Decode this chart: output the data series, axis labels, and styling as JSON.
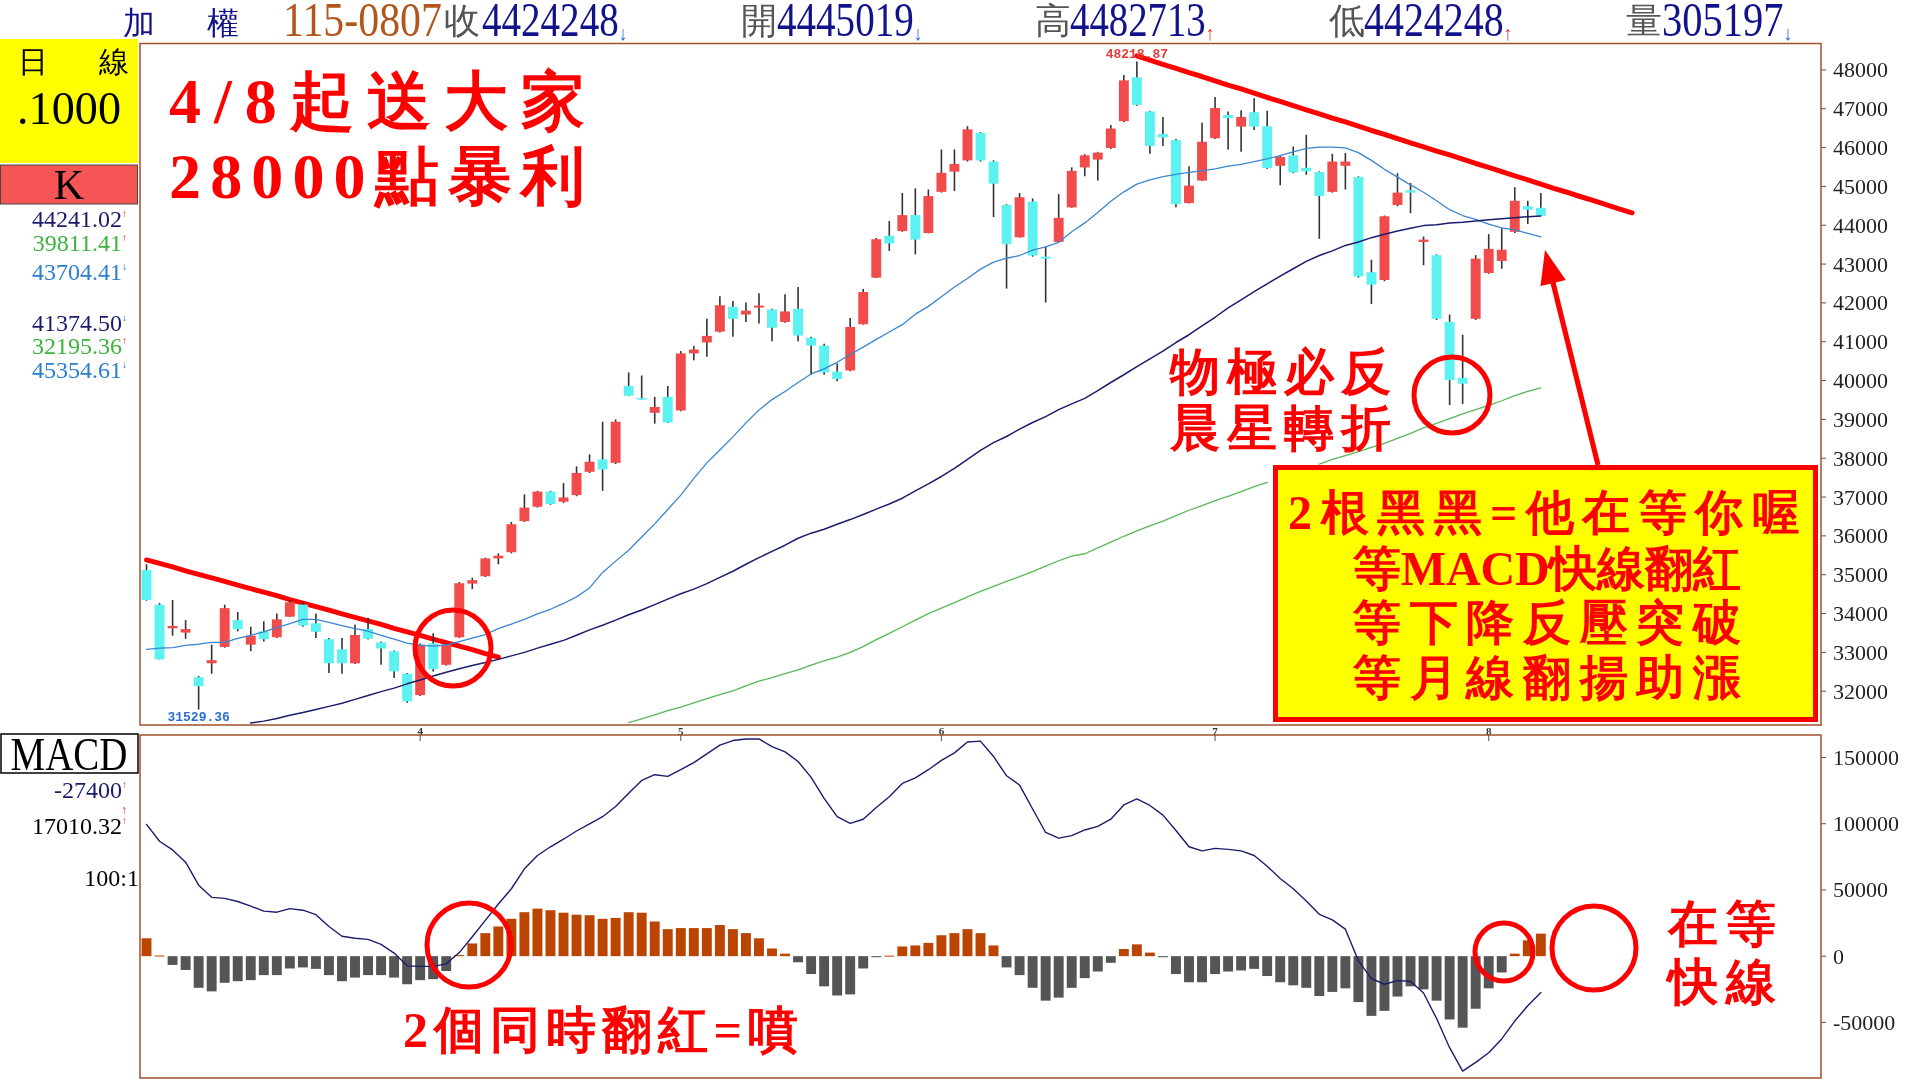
{
  "chart_data": [
    {
      "type": "candlestick",
      "categories": [
        null,
        null,
        null,
        null,
        null,
        null,
        null,
        null,
        null,
        null,
        null,
        null,
        null,
        null,
        null,
        null,
        null,
        null,
        null,
        null,
        null,
        "4",
        null,
        null,
        null,
        null,
        null,
        null,
        null,
        null,
        null,
        null,
        null,
        null,
        null,
        null,
        null,
        null,
        null,
        null,
        null,
        "5",
        null,
        null,
        null,
        null,
        null,
        null,
        null,
        null,
        null,
        null,
        null,
        null,
        null,
        null,
        null,
        null,
        null,
        null,
        null,
        "6",
        null,
        null,
        null,
        null,
        null,
        null,
        null,
        null,
        null,
        null,
        null,
        null,
        null,
        null,
        null,
        null,
        null,
        null,
        null,
        null,
        "7",
        null,
        null,
        null,
        null,
        null,
        null,
        null,
        null,
        null,
        null,
        null,
        null,
        null,
        null,
        null,
        null,
        null,
        null,
        null,
        null,
        "8",
        null,
        null,
        null,
        null,
        null,
        null,
        null,
        null,
        null,
        null,
        null,
        null,
        null,
        null,
        null,
        null,
        null,
        null,
        null,
        null,
        null,
        null,
        null,
        null,
        null
      ],
      "ohlc": [
        [
          35120,
          35270,
          34330,
          34350
        ],
        [
          34230,
          34270,
          32820,
          32820
        ],
        [
          33620,
          34350,
          33430,
          33680
        ],
        [
          33510,
          33830,
          33350,
          33600
        ],
        [
          32360,
          32390,
          31529.36,
          32130
        ],
        [
          32720,
          33200,
          32450,
          32800
        ],
        [
          33140,
          34230,
          33120,
          34140
        ],
        [
          33830,
          34040,
          33540,
          33600
        ],
        [
          33200,
          33660,
          33030,
          33430
        ],
        [
          33540,
          33800,
          33280,
          33340
        ],
        [
          33390,
          34000,
          33370,
          33850
        ],
        [
          33920,
          34350,
          33910,
          34290
        ],
        [
          34230,
          34290,
          33660,
          33690
        ],
        [
          33750,
          34000,
          33370,
          33530
        ],
        [
          33340,
          33370,
          32470,
          32720
        ],
        [
          33080,
          33370,
          32450,
          32720
        ],
        [
          32720,
          33720,
          32700,
          33450
        ],
        [
          33600,
          33890,
          33330,
          33350
        ],
        [
          33260,
          33280,
          32680,
          33100
        ],
        [
          33030,
          33050,
          32340,
          32510
        ],
        [
          32450,
          32470,
          31700,
          31740
        ],
        [
          31900,
          33230,
          31880,
          33200
        ],
        [
          33230,
          33490,
          32510,
          32570
        ],
        [
          32680,
          33230,
          32660,
          33200
        ],
        [
          33390,
          34810,
          33370,
          34780
        ],
        [
          34770,
          34920,
          34630,
          34860
        ],
        [
          34960,
          35440,
          34940,
          35420
        ],
        [
          35420,
          35550,
          35270,
          35490
        ],
        [
          35580,
          36360,
          35550,
          36300
        ],
        [
          36380,
          37070,
          36360,
          36730
        ],
        [
          36750,
          37160,
          36730,
          37140
        ],
        [
          37140,
          37160,
          36800,
          36820
        ],
        [
          36880,
          37360,
          36850,
          36990
        ],
        [
          37050,
          37790,
          37020,
          37620
        ],
        [
          37650,
          38100,
          37620,
          37910
        ],
        [
          37970,
          38940,
          37160,
          37710
        ],
        [
          37880,
          39000,
          37850,
          38940
        ],
        [
          39860,
          40210,
          39600,
          39610
        ],
        [
          39550,
          40130,
          39510,
          39520
        ],
        [
          39170,
          39580,
          38890,
          39320
        ],
        [
          39580,
          39860,
          38910,
          38920
        ],
        [
          39230,
          40760,
          39210,
          40700
        ],
        [
          40700,
          40890,
          40520,
          40800
        ],
        [
          40980,
          41590,
          40610,
          41150
        ],
        [
          41260,
          42170,
          41240,
          41940
        ],
        [
          41900,
          42050,
          41130,
          41590
        ],
        [
          41700,
          42010,
          41510,
          41800
        ],
        [
          41880,
          42250,
          41470,
          41930
        ],
        [
          41830,
          41850,
          41010,
          41360
        ],
        [
          41510,
          42220,
          41490,
          41780
        ],
        [
          41850,
          42410,
          41010,
          41160
        ],
        [
          41100,
          41130,
          40150,
          40900
        ],
        [
          40900,
          40950,
          40150,
          40210
        ],
        [
          40230,
          40440,
          39980,
          40040
        ],
        [
          40260,
          41610,
          40240,
          41380
        ],
        [
          41450,
          42360,
          41440,
          42280
        ],
        [
          42650,
          43670,
          42640,
          43640
        ],
        [
          43730,
          44110,
          43340,
          43530
        ],
        [
          43850,
          44830,
          43830,
          44260
        ],
        [
          44260,
          44950,
          43250,
          43630
        ],
        [
          43800,
          44920,
          43790,
          44750
        ],
        [
          44860,
          45950,
          44840,
          45350
        ],
        [
          45380,
          45950,
          44880,
          45580
        ],
        [
          45670,
          46550,
          45640,
          46470
        ],
        [
          46380,
          46400,
          45640,
          45670
        ],
        [
          45640,
          45670,
          44210,
          45070
        ],
        [
          44520,
          44540,
          42370,
          43510
        ],
        [
          43690,
          44830,
          43680,
          44720
        ],
        [
          44610,
          44690,
          43190,
          43220
        ],
        [
          43190,
          43450,
          42010,
          43140
        ],
        [
          43570,
          44800,
          43560,
          44190
        ],
        [
          44460,
          45490,
          44450,
          45400
        ],
        [
          45490,
          45830,
          45260,
          45800
        ],
        [
          45690,
          45890,
          45150,
          45870
        ],
        [
          45990,
          46580,
          45960,
          46490
        ],
        [
          46680,
          47870,
          46650,
          47730
        ],
        [
          47810,
          48218.87,
          47080,
          47100
        ],
        [
          46930,
          46950,
          45840,
          46040
        ],
        [
          46350,
          46790,
          46040,
          46260
        ],
        [
          46190,
          46220,
          44460,
          44540
        ],
        [
          44570,
          45520,
          44560,
          45020
        ],
        [
          45150,
          46640,
          45140,
          46150
        ],
        [
          46240,
          47300,
          46220,
          47020
        ],
        [
          46840,
          46930,
          45950,
          46760
        ],
        [
          46540,
          46960,
          45890,
          46790
        ],
        [
          46910,
          47270,
          46450,
          46540
        ],
        [
          46550,
          46950,
          45450,
          45470
        ],
        [
          45530,
          45800,
          45030,
          45760
        ],
        [
          45800,
          46030,
          45340,
          45360
        ],
        [
          45480,
          46330,
          45300,
          45390
        ],
        [
          45370,
          45390,
          43650,
          44750
        ],
        [
          44860,
          45840,
          44840,
          45640
        ],
        [
          45530,
          45860,
          44920,
          45640
        ],
        [
          45240,
          45260,
          42650,
          42680
        ],
        [
          42790,
          43110,
          41970,
          42470
        ],
        [
          42590,
          44250,
          42560,
          44230
        ],
        [
          44520,
          45340,
          44490,
          44840
        ],
        [
          44900,
          45090,
          44310,
          44840
        ],
        [
          43570,
          43710,
          42970,
          43630
        ],
        [
          43230,
          43250,
          41560,
          41590
        ],
        [
          41510,
          41700,
          39370,
          40010
        ],
        [
          40070,
          41180,
          39400,
          39920
        ],
        [
          41590,
          43230,
          41560,
          43140
        ],
        [
          42770,
          43770,
          42750,
          43390
        ],
        [
          43080,
          43920,
          42880,
          43370
        ],
        [
          43830,
          44980,
          43800,
          44630
        ],
        [
          44490,
          44630,
          44030,
          44400
        ],
        [
          44450.19,
          44827.13,
          44242.48,
          44242.48
        ],
        null,
        null,
        null,
        null,
        null,
        null,
        null,
        null,
        null,
        null,
        null,
        null,
        null,
        null,
        null,
        null,
        null,
        null,
        null,
        null,
        null
      ],
      "colors": [
        "#5cf2f2",
        "#5cf2f2",
        "#f24b4b",
        "#f24b4b",
        "#5cf2f2",
        "#f24b4b",
        "#f24b4b",
        "#5cf2f2",
        "#f24b4b",
        "#5cf2f2",
        "#f24b4b",
        "#f24b4b",
        "#5cf2f2",
        "#5cf2f2",
        "#5cf2f2",
        "#5cf2f2",
        "#f24b4b",
        "#5cf2f2",
        "#5cf2f2",
        "#5cf2f2",
        "#5cf2f2",
        "#f24b4b",
        "#5cf2f2",
        "#f24b4b",
        "#f24b4b",
        "#f24b4b",
        "#f24b4b",
        "#f24b4b",
        "#f24b4b",
        "#f24b4b",
        "#f24b4b",
        "#5cf2f2",
        "#f24b4b",
        "#f24b4b",
        "#f24b4b",
        "#5cf2f2",
        "#f24b4b",
        "#5cf2f2",
        "#5cf2f2",
        "#f24b4b",
        "#5cf2f2",
        "#f24b4b",
        "#f24b4b",
        "#f24b4b",
        "#f24b4b",
        "#5cf2f2",
        "#f24b4b",
        "#f24b4b",
        "#5cf2f2",
        "#f24b4b",
        "#5cf2f2",
        "#5cf2f2",
        "#5cf2f2",
        "#5cf2f2",
        "#f24b4b",
        "#f24b4b",
        "#f24b4b",
        "#5cf2f2",
        "#f24b4b",
        "#5cf2f2",
        "#f24b4b",
        "#f24b4b",
        "#f24b4b",
        "#f24b4b",
        "#5cf2f2",
        "#5cf2f2",
        "#5cf2f2",
        "#f24b4b",
        "#5cf2f2",
        "#5cf2f2",
        "#f24b4b",
        "#f24b4b",
        "#f24b4b",
        "#f24b4b",
        "#f24b4b",
        "#f24b4b",
        "#5cf2f2",
        "#5cf2f2",
        "#5cf2f2",
        "#5cf2f2",
        "#f24b4b",
        "#f24b4b",
        "#f24b4b",
        "#5cf2f2",
        "#f24b4b",
        "#5cf2f2",
        "#5cf2f2",
        "#f24b4b",
        "#5cf2f2",
        "#5cf2f2",
        "#5cf2f2",
        "#f24b4b",
        "#f24b4b",
        "#5cf2f2",
        "#5cf2f2",
        "#f24b4b",
        "#f24b4b",
        "#5cf2f2",
        "#f24b4b",
        "#5cf2f2",
        "#5cf2f2",
        "#5cf2f2",
        "#f24b4b",
        "#f24b4b",
        "#f24b4b",
        "#f24b4b",
        "#5cf2f2",
        "#5cf2f2",
        null,
        null,
        null,
        null,
        null,
        null,
        null,
        null,
        null,
        null,
        null,
        null,
        null,
        null,
        null,
        null,
        null,
        null,
        null,
        null,
        null
      ],
      "series": [
        {
          "type": "line",
          "color": "#3a86d0",
          "values": [
            33080,
            33110,
            33120,
            33180,
            33210,
            33260,
            33260,
            33360,
            33440,
            33530,
            33640,
            33740,
            33850,
            33850,
            33770,
            33690,
            33610,
            33550,
            33440,
            33340,
            33240,
            33180,
            33160,
            33190,
            33280,
            33370,
            33460,
            33610,
            33730,
            33850,
            33990,
            34110,
            34260,
            34430,
            34660,
            35060,
            35350,
            35630,
            35970,
            36310,
            36680,
            37050,
            37480,
            37880,
            38210,
            38550,
            38910,
            39240,
            39510,
            39720,
            39950,
            40170,
            40300,
            40470,
            40670,
            40860,
            41060,
            41250,
            41440,
            41710,
            41910,
            42160,
            42410,
            42630,
            42870,
            43050,
            43150,
            43220,
            43360,
            43440,
            43560,
            43830,
            44060,
            44330,
            44620,
            44860,
            45060,
            45170,
            45250,
            45310,
            45360,
            45400,
            45450,
            45520,
            45570,
            45640,
            45710,
            45790,
            45890,
            45980,
            46010,
            46010,
            45990,
            45870,
            45670,
            45440,
            45240,
            45040,
            44850,
            44630,
            44400,
            44250,
            44150,
            44030,
            43930,
            43880,
            43790,
            43700,
            null,
            null,
            null,
            null,
            null,
            null,
            null,
            null,
            null,
            null,
            null,
            null,
            null,
            null,
            null,
            null,
            null,
            null,
            null,
            null,
            null
          ]
        },
        {
          "type": "line",
          "color": "#1c1c6c",
          "values": [
            null,
            null,
            null,
            null,
            null,
            null,
            null,
            null,
            31180,
            31230,
            31300,
            31380,
            31450,
            31530,
            31610,
            31690,
            31790,
            31890,
            31990,
            32080,
            32190,
            32290,
            32390,
            32490,
            32580,
            32660,
            32740,
            32820,
            32910,
            33000,
            33110,
            33210,
            33310,
            33440,
            33580,
            33700,
            33830,
            33970,
            34090,
            34230,
            34370,
            34510,
            34630,
            34770,
            34930,
            35090,
            35270,
            35440,
            35600,
            35760,
            35940,
            36070,
            36170,
            36300,
            36420,
            36550,
            36690,
            36820,
            36970,
            37160,
            37340,
            37530,
            37740,
            37970,
            38200,
            38400,
            38560,
            38750,
            38920,
            39070,
            39250,
            39400,
            39540,
            39740,
            39950,
            40150,
            40360,
            40560,
            40760,
            40980,
            41180,
            41410,
            41630,
            41870,
            42080,
            42290,
            42490,
            42690,
            42880,
            43070,
            43220,
            43340,
            43480,
            43570,
            43680,
            43770,
            43850,
            43920,
            43990,
            44010,
            44060,
            44080,
            44110,
            44140,
            44170,
            44190,
            44220,
            44240,
            null,
            null,
            null,
            null,
            null,
            null,
            null,
            null,
            null,
            null,
            null,
            null,
            null,
            null,
            null,
            null,
            null,
            null,
            null,
            null,
            null
          ]
        },
        {
          "type": "line",
          "color": "#58b858",
          "values": [
            null,
            null,
            null,
            null,
            null,
            null,
            null,
            null,
            null,
            null,
            null,
            null,
            null,
            null,
            null,
            null,
            null,
            null,
            null,
            null,
            null,
            null,
            null,
            null,
            null,
            null,
            null,
            null,
            null,
            null,
            null,
            null,
            null,
            null,
            null,
            null,
            null,
            31190,
            31290,
            31390,
            31500,
            31590,
            31700,
            31810,
            31910,
            32010,
            32140,
            32260,
            32350,
            32450,
            32550,
            32670,
            32780,
            32880,
            33000,
            33150,
            33330,
            33490,
            33660,
            33830,
            34000,
            34140,
            34280,
            34430,
            34570,
            34700,
            34830,
            34950,
            35080,
            35220,
            35360,
            35480,
            35540,
            35690,
            35840,
            35990,
            36130,
            36260,
            36380,
            36520,
            36660,
            36780,
            36910,
            37020,
            37140,
            37270,
            37380,
            null,
            null,
            null,
            37850,
            37970,
            38070,
            38170,
            38280,
            38380,
            38510,
            38640,
            38780,
            38900,
            39020,
            39140,
            39250,
            39360,
            39480,
            39610,
            39720,
            39810,
            null,
            null,
            null,
            null,
            null,
            null,
            null,
            null,
            null,
            null,
            null,
            null,
            null,
            null,
            null,
            null,
            null,
            null,
            null,
            null,
            null
          ]
        },
        {
          "type": "line",
          "color": "#ff0000",
          "values": [
            35380,
            35290,
            35200,
            35100,
            35010,
            34920,
            34830,
            34730,
            34640,
            34550,
            34460,
            34360,
            34270,
            34180,
            34090,
            33990,
            33900,
            33810,
            33720,
            33620,
            33530,
            33440,
            33340,
            33250,
            33160,
            33070,
            32970,
            32880,
            null,
            null,
            null,
            null,
            null,
            null,
            null,
            null,
            null,
            null,
            null,
            null,
            null,
            null,
            null,
            null,
            null,
            null,
            null,
            null,
            null,
            null,
            null,
            null,
            null,
            null,
            null,
            null,
            null,
            null,
            null,
            null,
            null,
            null,
            null,
            null,
            null,
            null,
            null,
            null,
            null,
            null,
            null,
            null,
            null,
            null,
            null,
            null,
            null,
            null,
            null,
            null,
            null,
            null,
            null,
            null,
            null,
            null,
            null,
            null,
            null,
            null,
            null,
            null,
            null,
            null,
            null,
            null,
            null,
            null,
            null,
            null,
            null,
            null,
            null,
            null,
            null,
            null,
            null,
            null,
            null,
            null,
            null,
            null,
            null,
            null,
            null,
            null,
            null,
            null,
            null,
            null,
            null,
            null,
            null,
            null,
            null,
            null,
            null,
            null,
            null
          ]
        },
        {
          "type": "line",
          "color": "#ff0000",
          "values": [
            null,
            null,
            null,
            null,
            null,
            null,
            null,
            null,
            null,
            null,
            null,
            null,
            null,
            null,
            null,
            null,
            null,
            null,
            null,
            null,
            null,
            null,
            null,
            null,
            null,
            null,
            null,
            null,
            null,
            null,
            null,
            null,
            null,
            null,
            null,
            null,
            null,
            null,
            null,
            null,
            null,
            null,
            null,
            null,
            null,
            null,
            null,
            null,
            null,
            null,
            null,
            null,
            null,
            null,
            null,
            null,
            null,
            null,
            null,
            null,
            null,
            null,
            null,
            null,
            null,
            null,
            null,
            null,
            null,
            null,
            null,
            null,
            null,
            null,
            null,
            null,
            48360,
            48250,
            48140,
            48040,
            47930,
            47830,
            47720,
            47610,
            47510,
            47400,
            47290,
            47190,
            47080,
            46970,
            46870,
            46760,
            46660,
            46550,
            46440,
            46340,
            46230,
            46120,
            46020,
            45910,
            45810,
            45700,
            45590,
            45490,
            45380,
            45270,
            45170,
            45060,
            44950,
            44850,
            44740,
            44640,
            44530,
            44420,
            44320,
            null,
            null,
            null,
            null,
            null,
            null,
            null,
            null,
            null,
            null,
            null,
            null,
            null,
            null
          ]
        }
      ],
      "ylim": [
        31130,
        48680
      ],
      "yticks": [
        32000,
        33000,
        34000,
        35000,
        36000,
        37000,
        38000,
        39000,
        40000,
        41000,
        42000,
        43000,
        44000,
        45000,
        46000,
        47000,
        48000
      ],
      "annotations": [
        "加 權",
        "115-0807",
        "收",
        "4424248$_{↓}$",
        "開",
        "4445019$_{↓}$",
        "高",
        "4482713$_{↑}$",
        "低",
        "4424248$_{↑}$",
        "量",
        "305197$_{↓}$",
        "日 線",
        ".1000",
        "K",
        "44241.02$^{↑}$",
        "39811.41$^{↑}$",
        "43704.41$^{↓}$",
        "41374.50$^{↓}$",
        "32195.36$^{↑}$",
        "45354.61$^{↓}$",
        "4/8起送大家",
        "28000點暴利",
        "物極必反",
        "晨星轉折",
        "2根黑黑=他在等你喔",
        "等MACD快線翻紅",
        "等下降反壓突破",
        "等月線翻揚助漲",
        {
          "text": "48218.87",
          "y": 48218.87
        },
        {
          "text": "31529.36",
          "y": 31529.36
        }
      ]
    },
    {
      "type": "bar",
      "categories": [
        null,
        null,
        null,
        null,
        null,
        null,
        null,
        null,
        null,
        null,
        null,
        null,
        null,
        null,
        null,
        null,
        null,
        null,
        null,
        null,
        null,
        "4",
        null,
        null,
        null,
        null,
        null,
        null,
        null,
        null,
        null,
        null,
        null,
        null,
        null,
        null,
        null,
        null,
        null,
        null,
        null,
        "5",
        null,
        null,
        null,
        null,
        null,
        null,
        null,
        null,
        null,
        null,
        null,
        null,
        null,
        null,
        null,
        null,
        null,
        null,
        null,
        "6",
        null,
        null,
        null,
        null,
        null,
        null,
        null,
        null,
        null,
        null,
        null,
        null,
        null,
        null,
        null,
        null,
        null,
        null,
        null,
        null,
        "7",
        null,
        null,
        null,
        null,
        null,
        null,
        null,
        null,
        null,
        null,
        null,
        null,
        null,
        null,
        null,
        null,
        null,
        null,
        null,
        null,
        "8",
        null,
        null,
        null,
        null,
        null,
        null,
        null,
        null,
        null,
        null,
        null,
        null,
        null,
        null,
        null,
        null,
        null,
        null,
        null,
        null,
        null,
        null,
        null,
        null,
        null
      ],
      "series": [
        {
          "colors": [
            "#bb4400",
            "#bb4400",
            "#555555",
            "#555555",
            "#555555",
            "#555555",
            "#555555",
            "#555555",
            "#555555",
            "#555555",
            "#555555",
            "#555555",
            "#555555",
            "#555555",
            "#555555",
            "#555555",
            "#555555",
            "#555555",
            "#555555",
            "#555555",
            "#555555",
            "#555555",
            "#555555",
            "#555555",
            "#bb4400",
            "#bb4400",
            "#bb4400",
            "#bb4400",
            "#bb4400",
            "#bb4400",
            "#bb4400",
            "#bb4400",
            "#bb4400",
            "#bb4400",
            "#bb4400",
            "#bb4400",
            "#bb4400",
            "#bb4400",
            "#bb4400",
            "#bb4400",
            "#bb4400",
            "#bb4400",
            "#bb4400",
            "#bb4400",
            "#bb4400",
            "#bb4400",
            "#bb4400",
            "#bb4400",
            "#bb4400",
            "#bb4400",
            "#555555",
            "#555555",
            "#555555",
            "#555555",
            "#555555",
            "#555555",
            "#555555",
            "#bb4400",
            "#bb4400",
            "#bb4400",
            "#bb4400",
            "#bb4400",
            "#bb4400",
            "#bb4400",
            "#bb4400",
            "#bb4400",
            "#555555",
            "#555555",
            "#555555",
            "#555555",
            "#555555",
            "#555555",
            "#555555",
            "#555555",
            "#555555",
            "#bb4400",
            "#bb4400",
            "#bb4400",
            "#555555",
            "#555555",
            "#555555",
            "#555555",
            "#555555",
            "#555555",
            "#555555",
            "#555555",
            "#555555",
            "#555555",
            "#555555",
            "#555555",
            "#555555",
            "#555555",
            "#555555",
            "#555555",
            "#555555",
            "#555555",
            "#555555",
            "#555555",
            "#555555",
            "#555555",
            "#555555",
            "#555555",
            "#555555",
            "#555555",
            "#555555",
            "#bb4400",
            "#bb4400",
            "#bb4400",
            null,
            null,
            null,
            null,
            null,
            null,
            null,
            null,
            null,
            null,
            null,
            null,
            null,
            null,
            null,
            null,
            null,
            null,
            null,
            null,
            null
          ],
          "values": [
            13500,
            500,
            -6600,
            -10400,
            -23900,
            -26600,
            -20100,
            -18900,
            -18100,
            -14300,
            -14300,
            -9300,
            -8500,
            -9600,
            -14300,
            -18900,
            -16200,
            -14300,
            -14300,
            -16200,
            -21200,
            -18100,
            -17400,
            -11200,
            800,
            9600,
            17400,
            22400,
            28200,
            33200,
            35900,
            34700,
            32800,
            31300,
            30900,
            28200,
            28900,
            33200,
            32800,
            26200,
            20400,
            21200,
            21200,
            21200,
            23500,
            20400,
            17400,
            13500,
            5800,
            1900,
            -4600,
            -13500,
            -22800,
            -29700,
            -28900,
            -9300,
            -800,
            400,
            7300,
            8100,
            10000,
            15800,
            17400,
            20400,
            17400,
            8100,
            -8500,
            -14300,
            -23900,
            -33600,
            -31300,
            -23900,
            -16600,
            -11600,
            -5000,
            5400,
            8900,
            2700,
            -800,
            -13500,
            -19700,
            -19700,
            -13500,
            -11600,
            -10800,
            -9600,
            -15000,
            -19700,
            -22000,
            -23900,
            -30100,
            -27000,
            -24300,
            -34700,
            -45100,
            -41300,
            -30500,
            -22800,
            -25100,
            -33600,
            -47800,
            -54000,
            -39700,
            -24300,
            -12300,
            1900,
            12000,
            17000,
            null,
            null,
            null,
            null,
            null,
            null,
            null,
            null,
            null,
            null,
            null,
            null,
            null,
            null,
            null,
            null,
            null,
            null,
            null,
            null,
            null
          ]
        },
        {
          "type": "line",
          "color": "#1c1c6e",
          "values": [
            99500,
            86800,
            80200,
            71000,
            53600,
            44400,
            43600,
            41300,
            37800,
            34000,
            33200,
            35900,
            34700,
            31300,
            22400,
            15000,
            13500,
            12700,
            8900,
            2300,
            -7300,
            -7700,
            -7700,
            -5800,
            2700,
            14700,
            27000,
            39400,
            50900,
            66000,
            76000,
            82600,
            88300,
            94500,
            99900,
            105300,
            113000,
            123100,
            132700,
            137000,
            135800,
            140800,
            146200,
            152800,
            159300,
            162800,
            164000,
            164000,
            158200,
            154300,
            147000,
            135000,
            119200,
            105300,
            100300,
            103400,
            112300,
            120400,
            130400,
            134600,
            140800,
            147800,
            153500,
            161700,
            162400,
            150800,
            136200,
            129200,
            111100,
            93400,
            89100,
            91000,
            95300,
            98000,
            103400,
            114200,
            118800,
            113800,
            106500,
            94900,
            82600,
            79500,
            81400,
            80600,
            79500,
            76000,
            67900,
            58600,
            50900,
            41700,
            31600,
            27400,
            20400,
            -3500,
            -17000,
            -21200,
            -18500,
            -18900,
            -27800,
            -47100,
            -69100,
            -86800,
            -80200,
            -72900,
            -62500,
            -49000,
            -37400,
            -27400,
            null,
            null,
            null,
            null,
            null,
            null,
            null,
            null,
            null,
            null,
            null,
            null,
            null,
            null,
            null,
            null,
            null,
            null,
            null,
            null,
            null
          ]
        }
      ],
      "ylim": [
        -92000,
        167000
      ],
      "yticks": [
        -50000,
        0,
        50000,
        100000,
        150000
      ],
      "tick_labels": "y",
      "annotations": [
        "MACD",
        "-27400$^{↑}$",
        "↑",
        "17010.32$^{↑}$",
        "100:1",
        "2個同時翻紅=噴",
        "在等",
        "快線"
      ]
    }
  ]
}
